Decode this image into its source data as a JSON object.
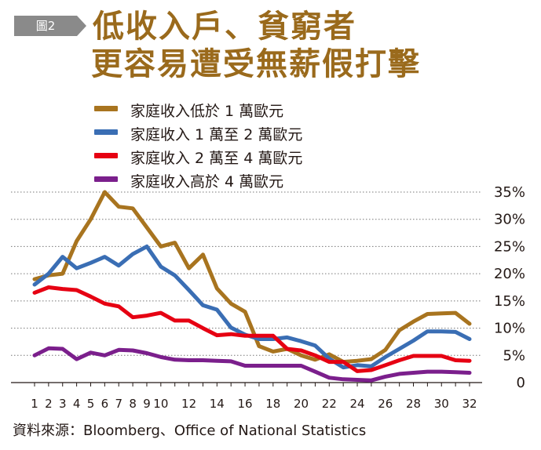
{
  "figure": {
    "badge": "圖2"
  },
  "title": {
    "line1": "低收入戶、貧窮者",
    "line2": "更容易遭受無薪假打擊"
  },
  "source": "資料來源：Bloomberg、Office of National Statistics",
  "chart_data": {
    "type": "line",
    "x": [
      1,
      2,
      3,
      4,
      5,
      6,
      7,
      8,
      9,
      10,
      11,
      12,
      13,
      14,
      15,
      16,
      17,
      18,
      19,
      20,
      21,
      22,
      23,
      24,
      25,
      26,
      27,
      28,
      29,
      30,
      31,
      32
    ],
    "x_tick_labels": [
      "1",
      "2",
      "3",
      "4",
      "5",
      "6",
      "7",
      "8",
      "9",
      "10",
      "12",
      "14",
      "16",
      "18",
      "20",
      "22",
      "24",
      "26",
      "28",
      "30",
      "32"
    ],
    "y_ticks": [
      "0",
      "5%",
      "10%",
      "15%",
      "20%",
      "25%",
      "30%",
      "35%"
    ],
    "ylim": [
      0,
      35
    ],
    "y_unit": "%",
    "grid": "horizontal dotted",
    "legend_position": "top-left",
    "series": [
      {
        "name": "家庭收入低於 1 萬歐元",
        "color": "#a8741f",
        "values": [
          19,
          19.7,
          20,
          26,
          30,
          35,
          32.3,
          32,
          28.5,
          25,
          25.7,
          21,
          23.5,
          17.3,
          14.5,
          13,
          6.7,
          5.7,
          6.2,
          5,
          4.2,
          5.2,
          3.8,
          4,
          4.3,
          6,
          9.6,
          11.2,
          12.6,
          12.7,
          12.8,
          10.8
        ]
      },
      {
        "name": "家庭收入 1 萬至 2 萬歐元",
        "color": "#3a6eb4",
        "values": [
          18,
          20,
          23.1,
          21,
          22,
          23.1,
          21.5,
          23.6,
          25,
          21.3,
          19.7,
          17,
          14.2,
          13.4,
          10.1,
          8.8,
          8,
          8,
          8.3,
          7.6,
          6.8,
          4.4,
          2.8,
          3.2,
          3,
          4.7,
          6.2,
          7.7,
          9.4,
          9.4,
          9.3,
          8
        ]
      },
      {
        "name": "家庭收入 2 萬至 4 萬歐元",
        "color": "#e60012",
        "values": [
          16.5,
          17.5,
          17.2,
          17,
          15.8,
          14.5,
          14,
          12,
          12.3,
          12.8,
          11.4,
          11.4,
          10,
          8.7,
          8.9,
          8.6,
          8.6,
          8.6,
          6.2,
          5.9,
          5,
          3.8,
          3.8,
          2.1,
          2.3,
          3.2,
          4.1,
          4.9,
          4.9,
          4.9,
          4.1,
          4
        ]
      },
      {
        "name": "家庭收入高於 4 萬歐元",
        "color": "#7b1f8c",
        "values": [
          5,
          6.3,
          6.2,
          4.3,
          5.5,
          5,
          6,
          5.9,
          5.4,
          4.7,
          4.2,
          4.1,
          4.1,
          4,
          3.9,
          3.1,
          3.1,
          3.1,
          3.1,
          3.1,
          2,
          0.9,
          0.6,
          0.5,
          0.4,
          1.1,
          1.6,
          1.8,
          2,
          2,
          1.9,
          1.8
        ]
      }
    ]
  }
}
